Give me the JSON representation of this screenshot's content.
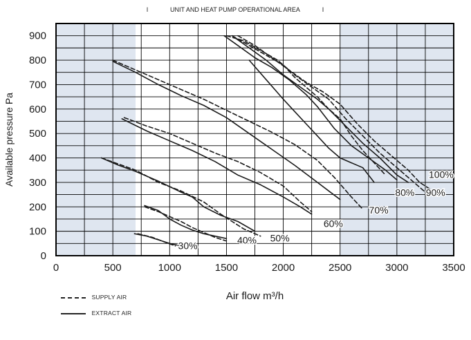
{
  "chart_data": {
    "type": "line",
    "title": "UNIT AND HEAT PUMP OPERATIONAL AREA",
    "title_markers": [
      "I",
      "I"
    ],
    "xlabel": "Air flow m³/h",
    "ylabel": "Available pressure Pa",
    "xlim": [
      0,
      3500
    ],
    "ylim": [
      0,
      950
    ],
    "xticks": [
      0,
      500,
      1000,
      1500,
      2000,
      2500,
      3000,
      3500
    ],
    "yticks": [
      0,
      100,
      200,
      300,
      400,
      500,
      600,
      700,
      800,
      900
    ],
    "grid": true,
    "shaded_ranges_x": [
      [
        0,
        700
      ],
      [
        2500,
        3500
      ]
    ],
    "shade_color": "#dfe6f0",
    "series_styles": {
      "supply": {
        "label": "SUPPLY AIR",
        "dash": "dashed"
      },
      "extract": {
        "label": "EXTRACT AIR",
        "dash": "solid"
      }
    },
    "series": [
      {
        "group": "30%",
        "style": "supply",
        "points": [
          [
            720,
            90
          ],
          [
            850,
            75
          ],
          [
            960,
            55
          ],
          [
            1050,
            40
          ]
        ]
      },
      {
        "group": "30%",
        "style": "extract",
        "points": [
          [
            690,
            90
          ],
          [
            800,
            80
          ],
          [
            900,
            65
          ],
          [
            1000,
            50
          ],
          [
            1100,
            40
          ]
        ]
      },
      {
        "group": "40%",
        "style": "supply",
        "points": [
          [
            780,
            200
          ],
          [
            900,
            180
          ],
          [
            1000,
            160
          ],
          [
            1100,
            140
          ],
          [
            1200,
            115
          ],
          [
            1300,
            95
          ],
          [
            1400,
            75
          ],
          [
            1500,
            60
          ]
        ]
      },
      {
        "group": "40%",
        "style": "extract",
        "points": [
          [
            780,
            205
          ],
          [
            900,
            185
          ],
          [
            1000,
            150
          ],
          [
            1100,
            125
          ],
          [
            1200,
            105
          ],
          [
            1300,
            90
          ],
          [
            1400,
            80
          ],
          [
            1500,
            70
          ]
        ]
      },
      {
        "group": "50%",
        "style": "supply",
        "points": [
          [
            400,
            400
          ],
          [
            550,
            375
          ],
          [
            700,
            350
          ],
          [
            900,
            300
          ],
          [
            1100,
            265
          ],
          [
            1300,
            220
          ],
          [
            1450,
            170
          ],
          [
            1550,
            140
          ],
          [
            1650,
            110
          ],
          [
            1800,
            80
          ]
        ]
      },
      {
        "group": "50%",
        "style": "extract",
        "points": [
          [
            400,
            400
          ],
          [
            550,
            370
          ],
          [
            700,
            345
          ],
          [
            900,
            305
          ],
          [
            1100,
            260
          ],
          [
            1200,
            240
          ],
          [
            1300,
            200
          ],
          [
            1450,
            165
          ],
          [
            1600,
            140
          ],
          [
            1750,
            100
          ]
        ]
      },
      {
        "group": "60%",
        "style": "supply",
        "points": [
          [
            600,
            565
          ],
          [
            800,
            530
          ],
          [
            1000,
            500
          ],
          [
            1200,
            460
          ],
          [
            1400,
            420
          ],
          [
            1600,
            385
          ],
          [
            1800,
            340
          ],
          [
            2000,
            285
          ],
          [
            2150,
            220
          ],
          [
            2250,
            180
          ]
        ]
      },
      {
        "group": "60%",
        "style": "extract",
        "points": [
          [
            580,
            560
          ],
          [
            800,
            510
          ],
          [
            1000,
            470
          ],
          [
            1200,
            430
          ],
          [
            1400,
            385
          ],
          [
            1600,
            330
          ],
          [
            1800,
            290
          ],
          [
            2000,
            240
          ],
          [
            2150,
            200
          ],
          [
            2250,
            170
          ]
        ]
      },
      {
        "group": "70%",
        "style": "supply",
        "points": [
          [
            500,
            800
          ],
          [
            700,
            760
          ],
          [
            900,
            720
          ],
          [
            1100,
            680
          ],
          [
            1300,
            640
          ],
          [
            1500,
            595
          ],
          [
            1700,
            550
          ],
          [
            1900,
            505
          ],
          [
            2100,
            455
          ],
          [
            2300,
            390
          ],
          [
            2450,
            320
          ],
          [
            2600,
            240
          ],
          [
            2700,
            190
          ]
        ]
      },
      {
        "group": "70%",
        "style": "extract",
        "points": [
          [
            500,
            795
          ],
          [
            700,
            750
          ],
          [
            900,
            700
          ],
          [
            1100,
            655
          ],
          [
            1300,
            615
          ],
          [
            1500,
            565
          ],
          [
            1700,
            500
          ],
          [
            1900,
            435
          ],
          [
            2100,
            370
          ],
          [
            2300,
            300
          ],
          [
            2400,
            265
          ],
          [
            2500,
            230
          ]
        ]
      },
      {
        "group": "80%",
        "style": "supply",
        "points": [
          [
            1550,
            900
          ],
          [
            1700,
            860
          ],
          [
            1850,
            820
          ],
          [
            2000,
            780
          ],
          [
            2100,
            730
          ],
          [
            2200,
            690
          ],
          [
            2300,
            650
          ],
          [
            2400,
            600
          ],
          [
            2500,
            560
          ],
          [
            2600,
            490
          ],
          [
            2700,
            430
          ],
          [
            2800,
            380
          ],
          [
            2900,
            330
          ]
        ]
      },
      {
        "group": "80%",
        "style": "extract",
        "points": [
          [
            1700,
            800
          ],
          [
            1850,
            720
          ],
          [
            2000,
            640
          ],
          [
            2100,
            590
          ],
          [
            2200,
            540
          ],
          [
            2300,
            490
          ],
          [
            2400,
            440
          ],
          [
            2500,
            400
          ],
          [
            2600,
            380
          ],
          [
            2700,
            360
          ],
          [
            2800,
            300
          ]
        ]
      },
      {
        "group": "90%",
        "style": "supply",
        "points": [
          [
            1500,
            900
          ],
          [
            1650,
            880
          ],
          [
            1800,
            840
          ],
          [
            1950,
            800
          ],
          [
            2100,
            740
          ],
          [
            2250,
            690
          ],
          [
            2400,
            640
          ],
          [
            2550,
            560
          ],
          [
            2700,
            490
          ],
          [
            2850,
            420
          ],
          [
            3000,
            360
          ],
          [
            3150,
            300
          ],
          [
            3250,
            260
          ]
        ]
      },
      {
        "group": "90%",
        "style": "extract",
        "points": [
          [
            1480,
            900
          ],
          [
            1600,
            860
          ],
          [
            1750,
            810
          ],
          [
            1900,
            770
          ],
          [
            2050,
            720
          ],
          [
            2200,
            660
          ],
          [
            2300,
            610
          ],
          [
            2450,
            520
          ],
          [
            2600,
            450
          ],
          [
            2750,
            400
          ],
          [
            2900,
            350
          ],
          [
            3000,
            310
          ]
        ]
      },
      {
        "group": "100%",
        "style": "supply",
        "points": [
          [
            1600,
            900
          ],
          [
            1750,
            860
          ],
          [
            1900,
            810
          ],
          [
            2050,
            760
          ],
          [
            2200,
            710
          ],
          [
            2350,
            670
          ],
          [
            2500,
            620
          ],
          [
            2650,
            540
          ],
          [
            2800,
            470
          ],
          [
            2950,
            410
          ],
          [
            3100,
            350
          ],
          [
            3200,
            300
          ],
          [
            3300,
            270
          ]
        ]
      },
      {
        "group": "100%",
        "style": "extract",
        "points": [
          [
            1550,
            900
          ],
          [
            1700,
            850
          ],
          [
            1850,
            800
          ],
          [
            2000,
            740
          ],
          [
            2150,
            690
          ],
          [
            2300,
            640
          ],
          [
            2400,
            600
          ],
          [
            2550,
            530
          ],
          [
            2700,
            460
          ],
          [
            2850,
            400
          ],
          [
            3000,
            330
          ],
          [
            3100,
            300
          ]
        ]
      }
    ],
    "annotations": [
      {
        "text": "30%",
        "x": 1160,
        "y": 27
      },
      {
        "text": "40%",
        "x": 1680,
        "y": 50
      },
      {
        "text": "50%",
        "x": 1970,
        "y": 58
      },
      {
        "text": "60%",
        "x": 2440,
        "y": 118
      },
      {
        "text": "70%",
        "x": 2840,
        "y": 173
      },
      {
        "text": "80%",
        "x": 3070,
        "y": 245
      },
      {
        "text": "90%",
        "x": 3340,
        "y": 245
      },
      {
        "text": "100%",
        "x": 3390,
        "y": 318
      }
    ]
  },
  "legend": {
    "supply_label": "SUPPLY AIR",
    "extract_label": "EXTRACT AIR"
  }
}
